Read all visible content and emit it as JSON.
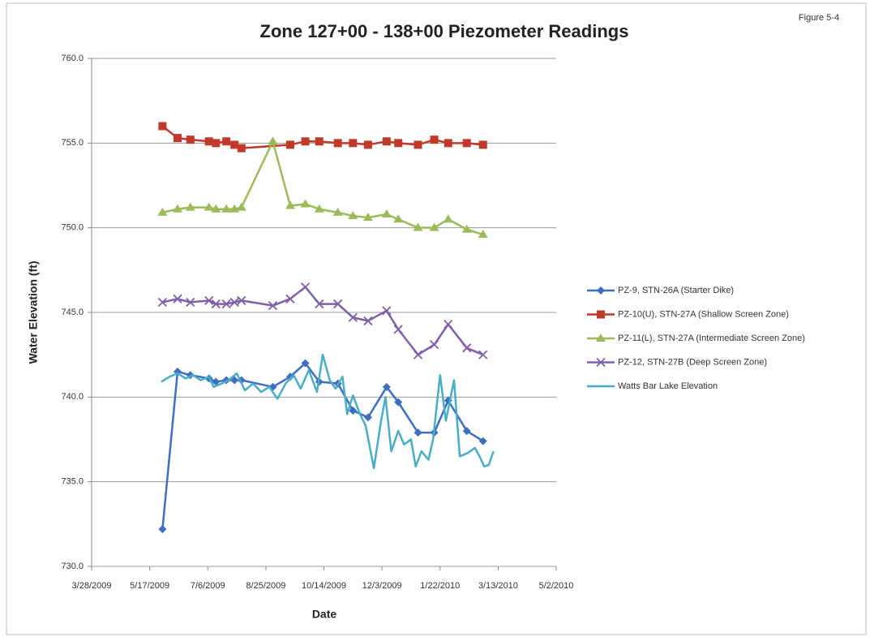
{
  "chart_data": {
    "type": "line",
    "title": "Zone 127+00 - 138+00 Piezometer Readings",
    "annotation": "Figure 5-4",
    "x_label": "Date",
    "y_label": "Water Elevation (ft)",
    "xlim": [
      "2009-03-28",
      "2010-05-02"
    ],
    "xticks": [
      {
        "value": "2009-03-28",
        "label": "3/28/2009"
      },
      {
        "value": "2009-05-17",
        "label": "5/17/2009"
      },
      {
        "value": "2009-07-06",
        "label": "7/6/2009"
      },
      {
        "value": "2009-08-25",
        "label": "8/25/2009"
      },
      {
        "value": "2009-10-14",
        "label": "10/14/2009"
      },
      {
        "value": "2009-12-03",
        "label": "12/3/2009"
      },
      {
        "value": "2010-01-22",
        "label": "1/22/2010"
      },
      {
        "value": "2010-03-13",
        "label": "3/13/2010"
      },
      {
        "value": "2010-05-02",
        "label": "5/2/2010"
      }
    ],
    "ylim": [
      730,
      760
    ],
    "yticks": [
      {
        "value": 730,
        "label": "730.0"
      },
      {
        "value": 735,
        "label": "735.0"
      },
      {
        "value": 740,
        "label": "740.0"
      },
      {
        "value": 745,
        "label": "745.0"
      },
      {
        "value": 750,
        "label": "750.0"
      },
      {
        "value": 755,
        "label": "755.0"
      },
      {
        "value": 760,
        "label": "760.0"
      }
    ],
    "grid": true,
    "legend": "right",
    "series": [
      {
        "name": "PZ-9, STN-26A (Starter Dike)",
        "color": "#3c6fc0",
        "marker": "diamond",
        "x": [
          "2009-05-28",
          "2009-06-10",
          "2009-06-21",
          "2009-07-07",
          "2009-07-13",
          "2009-07-22",
          "2009-07-29",
          "2009-08-04",
          "2009-08-31",
          "2009-09-15",
          "2009-09-28",
          "2009-10-10",
          "2009-10-26",
          "2009-11-08",
          "2009-11-21",
          "2009-12-07",
          "2009-12-17",
          "2010-01-03",
          "2010-01-17",
          "2010-01-29",
          "2010-02-14",
          "2010-02-28"
        ],
        "values": [
          732.2,
          741.5,
          741.3,
          741.1,
          740.9,
          741.0,
          741.0,
          741.0,
          740.6,
          741.2,
          742.0,
          740.9,
          740.8,
          739.2,
          738.8,
          740.6,
          739.7,
          737.9,
          737.9,
          739.8,
          738.0,
          737.4
        ]
      },
      {
        "name": "PZ-10(U), STN-27A (Shallow Screen Zone)",
        "color": "#c0392b",
        "marker": "square",
        "x": [
          "2009-05-28",
          "2009-06-10",
          "2009-06-21",
          "2009-07-07",
          "2009-07-13",
          "2009-07-22",
          "2009-07-29",
          "2009-08-04",
          "2009-09-15",
          "2009-09-28",
          "2009-10-10",
          "2009-10-26",
          "2009-11-08",
          "2009-11-21",
          "2009-12-07",
          "2009-12-17",
          "2010-01-03",
          "2010-01-17",
          "2010-01-29",
          "2010-02-14",
          "2010-02-28"
        ],
        "values": [
          756.0,
          755.3,
          755.2,
          755.1,
          755.0,
          755.1,
          754.9,
          754.7,
          754.9,
          755.1,
          755.1,
          755.0,
          755.0,
          754.9,
          755.1,
          755.0,
          754.9,
          755.2,
          755.0,
          755.0,
          754.9
        ]
      },
      {
        "name": "PZ-11(L), STN-27A (Intermediate Screen Zone)",
        "color": "#9bbb59",
        "marker": "triangle",
        "x": [
          "2009-05-28",
          "2009-06-10",
          "2009-06-21",
          "2009-07-07",
          "2009-07-13",
          "2009-07-22",
          "2009-07-29",
          "2009-08-04",
          "2009-08-31",
          "2009-09-15",
          "2009-09-28",
          "2009-10-10",
          "2009-10-26",
          "2009-11-08",
          "2009-11-21",
          "2009-12-07",
          "2009-12-17",
          "2010-01-03",
          "2010-01-17",
          "2010-01-29",
          "2010-02-14",
          "2010-02-28"
        ],
        "values": [
          750.9,
          751.1,
          751.2,
          751.2,
          751.1,
          751.1,
          751.1,
          751.2,
          755.1,
          751.3,
          751.4,
          751.1,
          750.9,
          750.7,
          750.6,
          750.8,
          750.5,
          750.0,
          750.0,
          750.5,
          749.9,
          749.6
        ]
      },
      {
        "name": "PZ-12, STN-27B (Deep Screen Zone)",
        "color": "#7e5fa8",
        "marker": "x",
        "x": [
          "2009-05-28",
          "2009-06-10",
          "2009-06-21",
          "2009-07-07",
          "2009-07-13",
          "2009-07-22",
          "2009-07-29",
          "2009-08-04",
          "2009-08-31",
          "2009-09-15",
          "2009-09-28",
          "2009-10-10",
          "2009-10-26",
          "2009-11-08",
          "2009-11-21",
          "2009-12-07",
          "2009-12-17",
          "2010-01-03",
          "2010-01-17",
          "2010-01-29",
          "2010-02-14",
          "2010-02-28"
        ],
        "values": [
          745.6,
          745.8,
          745.6,
          745.7,
          745.5,
          745.5,
          745.6,
          745.7,
          745.4,
          745.8,
          746.5,
          745.5,
          745.5,
          744.7,
          744.5,
          745.1,
          744.0,
          742.5,
          743.1,
          744.3,
          742.9,
          742.5
        ]
      },
      {
        "name": "Watts Bar Lake Elevation",
        "color": "#4bacc6",
        "marker": "none",
        "x": [
          "2009-05-27",
          "2009-06-03",
          "2009-06-10",
          "2009-06-17",
          "2009-06-23",
          "2009-06-30",
          "2009-07-07",
          "2009-07-11",
          "2009-07-18",
          "2009-07-24",
          "2009-07-31",
          "2009-08-07",
          "2009-08-14",
          "2009-08-21",
          "2009-08-28",
          "2009-09-04",
          "2009-09-11",
          "2009-09-18",
          "2009-09-24",
          "2009-10-01",
          "2009-10-08",
          "2009-10-13",
          "2009-10-19",
          "2009-10-24",
          "2009-10-30",
          "2009-11-03",
          "2009-11-08",
          "2009-11-14",
          "2009-11-19",
          "2009-11-26",
          "2009-12-02",
          "2009-12-06",
          "2009-12-11",
          "2009-12-17",
          "2009-12-22",
          "2009-12-28",
          "2010-01-01",
          "2010-01-06",
          "2010-01-12",
          "2010-01-16",
          "2010-01-22",
          "2010-01-27",
          "2010-02-03",
          "2010-02-08",
          "2010-02-15",
          "2010-02-21",
          "2010-02-25",
          "2010-03-01",
          "2010-03-05",
          "2010-03-09"
        ],
        "values": [
          740.9,
          741.2,
          741.4,
          741.1,
          741.3,
          741.0,
          741.2,
          740.6,
          740.8,
          741.0,
          741.4,
          740.4,
          740.8,
          740.3,
          740.6,
          739.9,
          740.8,
          741.3,
          740.5,
          741.6,
          740.3,
          742.5,
          741.0,
          740.5,
          741.2,
          739.0,
          740.1,
          739.0,
          738.3,
          735.8,
          738.5,
          740.0,
          736.8,
          738.0,
          737.2,
          737.5,
          735.9,
          736.8,
          736.3,
          737.5,
          741.3,
          738.6,
          741.0,
          736.5,
          736.7,
          737.0,
          736.5,
          735.9,
          736.0,
          736.8
        ]
      }
    ]
  }
}
